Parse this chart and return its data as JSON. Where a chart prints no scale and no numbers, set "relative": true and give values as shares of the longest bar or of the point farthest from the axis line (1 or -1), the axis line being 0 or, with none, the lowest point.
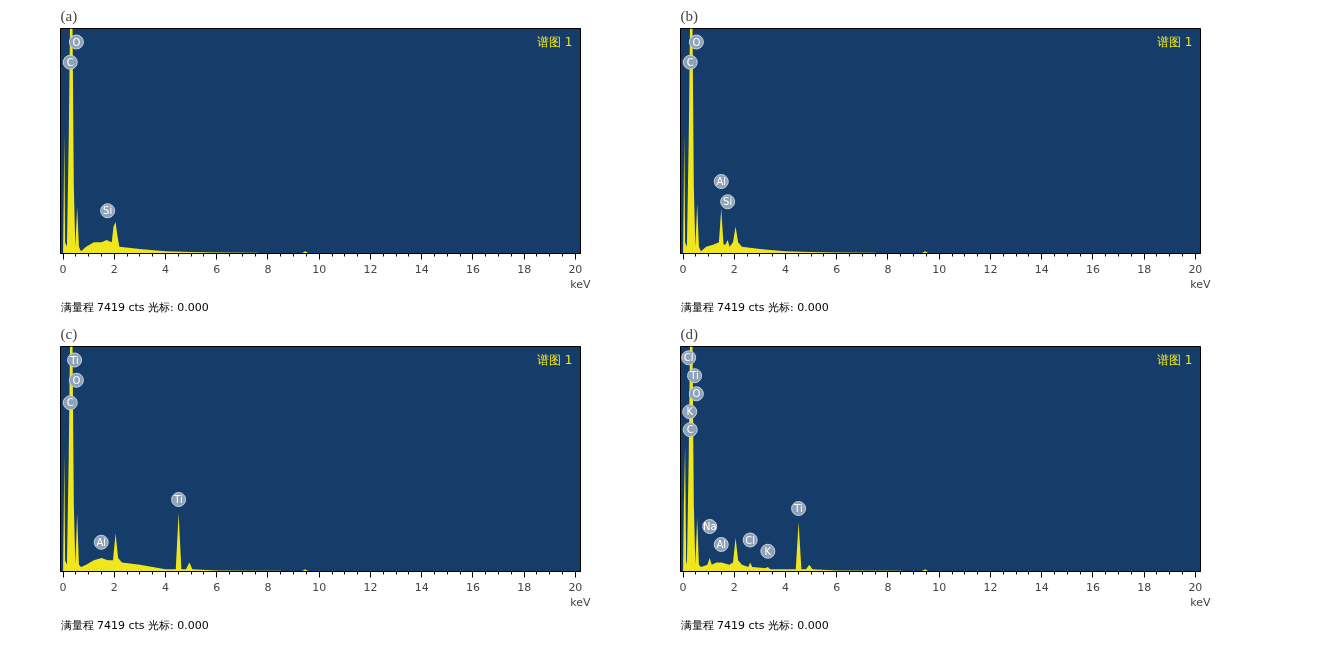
{
  "chart_data": [
    {
      "type": "area",
      "title": "(a)",
      "xlabel": "keV",
      "relative": true,
      "tick_labels": "x",
      "grid": false,
      "xlim": [
        -0.1,
        20.2
      ],
      "xticks": [
        0,
        2,
        4,
        6,
        8,
        10,
        12,
        14,
        16,
        18,
        20
      ],
      "series": [
        {
          "name": "谱图 1",
          "color": "#f0e61e",
          "x": [
            0,
            0.03,
            0.05,
            0.08,
            0.15,
            0.22,
            0.27,
            0.37,
            0.42,
            0.48,
            0.55,
            0.62,
            0.7,
            0.9,
            1.2,
            1.5,
            1.7,
            1.9,
            1.97,
            2.05,
            2.12,
            2.2,
            3,
            4,
            5,
            6,
            7.6,
            7.7,
            9.3,
            9.45,
            9.6,
            20
          ],
          "values": [
            0,
            0.3,
            0.54,
            0.05,
            0.03,
            0.5,
            1,
            1,
            0.3,
            0.03,
            0.21,
            0.03,
            0.01,
            0.03,
            0.05,
            0.05,
            0.06,
            0.05,
            0.12,
            0.14,
            0.08,
            0.03,
            0.02,
            0.01,
            0.007,
            0.005,
            0.003,
            0,
            0,
            0.01,
            0,
            0
          ]
        }
      ],
      "annotations": [
        "满量程 7419 cts 光标: 0.000",
        {
          "text": "O",
          "x": 0.52,
          "y": 0.94
        },
        {
          "text": "C",
          "x": 0.28,
          "y": 0.85
        },
        {
          "text": "Si",
          "x": 1.74,
          "y": 0.19
        }
      ]
    },
    {
      "type": "area",
      "title": "(b)",
      "xlabel": "keV",
      "relative": true,
      "tick_labels": "x",
      "grid": false,
      "xlim": [
        -0.1,
        20.2
      ],
      "xticks": [
        0,
        2,
        4,
        6,
        8,
        10,
        12,
        14,
        16,
        18,
        20
      ],
      "series": [
        {
          "name": "谱图 1",
          "color": "#f0e61e",
          "x": [
            0,
            0.03,
            0.05,
            0.08,
            0.15,
            0.22,
            0.27,
            0.37,
            0.42,
            0.48,
            0.55,
            0.62,
            0.7,
            0.9,
            1.2,
            1.4,
            1.49,
            1.58,
            1.66,
            1.74,
            1.82,
            1.95,
            2.05,
            2.15,
            2.3,
            3,
            4,
            5,
            6,
            7.5,
            7.6,
            9.3,
            9.45,
            9.6,
            20
          ],
          "values": [
            0,
            0.3,
            0.54,
            0.05,
            0.03,
            0.5,
            1,
            1,
            0.3,
            0.03,
            0.22,
            0.03,
            0.01,
            0.03,
            0.04,
            0.05,
            0.2,
            0.04,
            0.04,
            0.06,
            0.03,
            0.05,
            0.12,
            0.05,
            0.03,
            0.02,
            0.01,
            0.007,
            0.005,
            0.003,
            0,
            0,
            0.01,
            0,
            0
          ]
        }
      ],
      "annotations": [
        "满量程 7419 cts 光标: 0.000",
        {
          "text": "O",
          "x": 0.52,
          "y": 0.94
        },
        {
          "text": "C",
          "x": 0.28,
          "y": 0.85
        },
        {
          "text": "Al",
          "x": 1.49,
          "y": 0.32
        },
        {
          "text": "Si",
          "x": 1.74,
          "y": 0.23
        }
      ]
    },
    {
      "type": "area",
      "title": "(c)",
      "xlabel": "keV",
      "relative": true,
      "tick_labels": "x",
      "grid": false,
      "xlim": [
        -0.1,
        20.2
      ],
      "xticks": [
        0,
        2,
        4,
        6,
        8,
        10,
        12,
        14,
        16,
        18,
        20
      ],
      "series": [
        {
          "name": "谱图 1",
          "color": "#f0e61e",
          "x": [
            0,
            0.03,
            0.05,
            0.08,
            0.15,
            0.22,
            0.27,
            0.37,
            0.42,
            0.48,
            0.55,
            0.62,
            0.7,
            0.9,
            1.2,
            1.5,
            1.75,
            1.95,
            2.05,
            2.15,
            2.3,
            3,
            4,
            4.4,
            4.51,
            4.62,
            4.8,
            4.93,
            5.05,
            6,
            8.5,
            8.6,
            9.3,
            9.45,
            9.6,
            20
          ],
          "values": [
            0,
            0.3,
            0.53,
            0.05,
            0.03,
            0.5,
            1,
            1,
            0.3,
            0.03,
            0.26,
            0.03,
            0.02,
            0.03,
            0.05,
            0.06,
            0.05,
            0.05,
            0.17,
            0.06,
            0.04,
            0.03,
            0.01,
            0.01,
            0.26,
            0.01,
            0.01,
            0.04,
            0.01,
            0.005,
            0.003,
            0,
            0,
            0.01,
            0,
            0
          ]
        }
      ],
      "annotations": [
        "满量程 7419 cts 光标: 0.000",
        {
          "text": "Ti",
          "x": 0.45,
          "y": 0.94
        },
        {
          "text": "O",
          "x": 0.52,
          "y": 0.85
        },
        {
          "text": "C",
          "x": 0.28,
          "y": 0.75
        },
        {
          "text": "Al",
          "x": 1.49,
          "y": 0.13
        },
        {
          "text": "Ti",
          "x": 4.51,
          "y": 0.32
        }
      ]
    },
    {
      "type": "area",
      "title": "(d)",
      "xlabel": "keV",
      "relative": true,
      "tick_labels": "x",
      "grid": false,
      "xlim": [
        -0.1,
        20.2
      ],
      "xticks": [
        0,
        2,
        4,
        6,
        8,
        10,
        12,
        14,
        16,
        18,
        20
      ],
      "series": [
        {
          "name": "谱图 1",
          "color": "#f0e61e",
          "x": [
            0,
            0.03,
            0.08,
            0.12,
            0.15,
            0.22,
            0.27,
            0.37,
            0.42,
            0.48,
            0.55,
            0.62,
            0.7,
            0.95,
            1.04,
            1.12,
            1.3,
            1.5,
            1.8,
            1.95,
            2.05,
            2.15,
            2.3,
            2.55,
            2.62,
            2.7,
            3.2,
            3.31,
            3.4,
            4.3,
            4.4,
            4.51,
            4.62,
            4.8,
            4.93,
            5.05,
            6,
            8.5,
            8.6,
            9.3,
            9.45,
            9.6,
            20
          ],
          "values": [
            0,
            0.3,
            0.56,
            0.05,
            0.03,
            0.5,
            1,
            1,
            0.3,
            0.03,
            0.24,
            0.03,
            0.02,
            0.03,
            0.06,
            0.03,
            0.04,
            0.04,
            0.03,
            0.04,
            0.15,
            0.05,
            0.03,
            0.02,
            0.04,
            0.02,
            0.015,
            0.02,
            0.01,
            0.01,
            0.01,
            0.22,
            0.01,
            0.01,
            0.03,
            0.01,
            0.005,
            0.003,
            0,
            0,
            0.01,
            0,
            0
          ]
        }
      ],
      "annotations": [
        "满量程 7419 cts 光标: 0.000",
        {
          "text": "Cl",
          "x": 0.22,
          "y": 0.95
        },
        {
          "text": "Ti",
          "x": 0.45,
          "y": 0.87
        },
        {
          "text": "O",
          "x": 0.52,
          "y": 0.79
        },
        {
          "text": "K",
          "x": 0.26,
          "y": 0.71
        },
        {
          "text": "C",
          "x": 0.28,
          "y": 0.63
        },
        {
          "text": "Na",
          "x": 1.04,
          "y": 0.2
        },
        {
          "text": "Al",
          "x": 1.49,
          "y": 0.12
        },
        {
          "text": "Cl",
          "x": 2.62,
          "y": 0.14
        },
        {
          "text": "K",
          "x": 3.31,
          "y": 0.09
        },
        {
          "text": "Ti",
          "x": 4.51,
          "y": 0.28
        }
      ]
    }
  ]
}
